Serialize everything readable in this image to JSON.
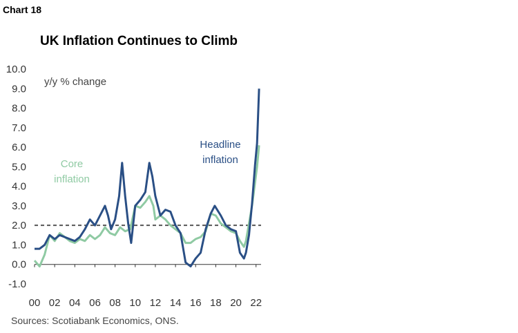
{
  "header": {
    "chart_number": "Chart 18",
    "title": "UK Inflation Continues to Climb"
  },
  "footer": {
    "source": "Sources: Scotiabank Economics, ONS."
  },
  "colors": {
    "headline": "#2A4F85",
    "core": "#8FCAA3",
    "reference_line": "#555555",
    "axis": "#333333"
  },
  "chart_data": {
    "type": "line",
    "title": "UK Inflation Continues to Climb",
    "ylabel": "y/y % change",
    "xlabel": "",
    "ylim": [
      -1.0,
      10.0
    ],
    "y_ticks": [
      "10.0",
      "9.0",
      "8.0",
      "7.0",
      "6.0",
      "5.0",
      "4.0",
      "3.0",
      "2.0",
      "1.0",
      "0.0",
      "-1.0"
    ],
    "y_tick_values": [
      10,
      9,
      8,
      7,
      6,
      5,
      4,
      3,
      2,
      1,
      0,
      -1
    ],
    "x_ticks": [
      "00",
      "02",
      "04",
      "06",
      "08",
      "10",
      "12",
      "14",
      "16",
      "18",
      "20",
      "22"
    ],
    "x_tick_values": [
      2000,
      2002,
      2004,
      2006,
      2008,
      2010,
      2012,
      2014,
      2016,
      2018,
      2020,
      2022
    ],
    "xlim": [
      2000,
      2022.5
    ],
    "reference_line": {
      "y": 2.0,
      "style": "dashed"
    },
    "grid": false,
    "series": [
      {
        "name": "Headline inflation",
        "label": "Headline\ninflation",
        "x": [
          2000.0,
          2000.5,
          2001.0,
          2001.5,
          2002.0,
          2002.5,
          2003.0,
          2003.5,
          2004.0,
          2004.5,
          2005.0,
          2005.5,
          2006.0,
          2006.5,
          2007.0,
          2007.3,
          2007.6,
          2008.0,
          2008.4,
          2008.7,
          2009.0,
          2009.3,
          2009.6,
          2010.0,
          2010.5,
          2011.0,
          2011.4,
          2011.7,
          2012.0,
          2012.5,
          2013.0,
          2013.5,
          2014.0,
          2014.5,
          2015.0,
          2015.5,
          2016.0,
          2016.5,
          2017.0,
          2017.5,
          2017.9,
          2018.5,
          2019.0,
          2019.5,
          2020.0,
          2020.4,
          2020.8,
          2021.0,
          2021.3,
          2021.6,
          2021.9,
          2022.1,
          2022.3
        ],
        "values": [
          0.8,
          0.8,
          1.0,
          1.5,
          1.3,
          1.5,
          1.4,
          1.3,
          1.2,
          1.4,
          1.8,
          2.3,
          2.0,
          2.5,
          3.0,
          2.5,
          1.8,
          2.3,
          3.5,
          5.2,
          3.5,
          2.1,
          1.1,
          3.0,
          3.3,
          3.7,
          5.2,
          4.5,
          3.5,
          2.5,
          2.8,
          2.7,
          2.0,
          1.6,
          0.1,
          -0.1,
          0.3,
          0.6,
          1.8,
          2.6,
          3.0,
          2.5,
          2.0,
          1.8,
          1.7,
          0.6,
          0.3,
          0.6,
          1.5,
          3.1,
          5.1,
          6.2,
          9.0
        ]
      },
      {
        "name": "Core inflation",
        "label": "Core\ninflation",
        "x": [
          2000.0,
          2000.5,
          2001.0,
          2001.5,
          2002.0,
          2002.5,
          2003.0,
          2003.5,
          2004.0,
          2004.5,
          2005.0,
          2005.5,
          2006.0,
          2006.5,
          2007.0,
          2007.5,
          2008.0,
          2008.5,
          2009.0,
          2009.5,
          2010.0,
          2010.5,
          2011.0,
          2011.4,
          2011.8,
          2012.0,
          2012.5,
          2013.0,
          2013.5,
          2014.0,
          2014.5,
          2015.0,
          2015.5,
          2016.0,
          2016.5,
          2017.0,
          2017.5,
          2018.0,
          2018.5,
          2019.0,
          2019.5,
          2020.0,
          2020.4,
          2020.8,
          2021.0,
          2021.3,
          2021.6,
          2021.9,
          2022.1,
          2022.3
        ],
        "values": [
          0.2,
          -0.1,
          0.5,
          1.5,
          1.2,
          1.6,
          1.4,
          1.2,
          1.1,
          1.3,
          1.2,
          1.5,
          1.3,
          1.5,
          1.9,
          1.6,
          1.5,
          1.9,
          1.7,
          1.8,
          3.0,
          2.9,
          3.2,
          3.5,
          3.0,
          2.3,
          2.5,
          2.3,
          2.0,
          1.8,
          1.6,
          1.1,
          1.1,
          1.3,
          1.4,
          1.7,
          2.6,
          2.5,
          2.1,
          1.9,
          1.7,
          1.6,
          1.2,
          0.9,
          1.2,
          2.1,
          3.0,
          4.2,
          5.0,
          6.1
        ]
      }
    ]
  }
}
